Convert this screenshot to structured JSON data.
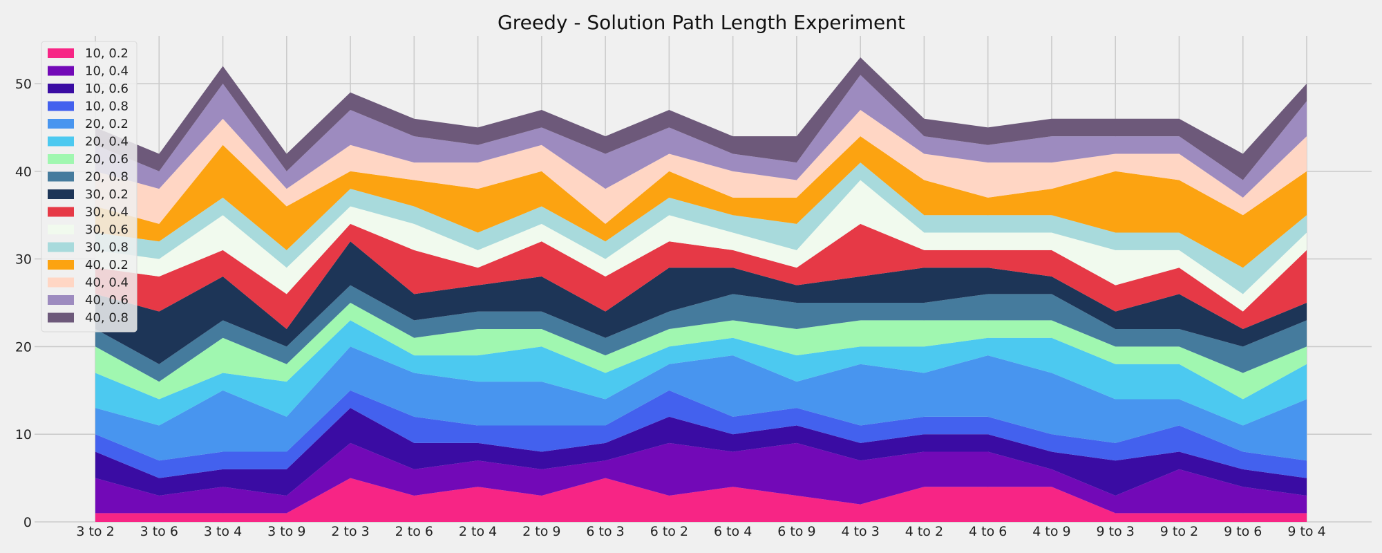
{
  "chart_data": {
    "type": "area",
    "stacked": true,
    "title": "Greedy - Solution Path Length Experiment",
    "xlabel": "",
    "ylabel": "",
    "ylim": [
      0,
      55
    ],
    "yticks": [
      0,
      10,
      20,
      30,
      40,
      50
    ],
    "grid": true,
    "legend_position": "top-left",
    "categories": [
      "3 to 2",
      "3 to 6",
      "3 to 4",
      "3 to 9",
      "2 to 3",
      "2 to 6",
      "2 to 4",
      "2 to 9",
      "6 to 3",
      "6 to 2",
      "6 to 4",
      "6 to 9",
      "4 to 3",
      "4 to 2",
      "4 to 6",
      "4 to 9",
      "9 to 3",
      "9 to 2",
      "9 to 6",
      "9 to 4"
    ],
    "series": [
      {
        "name": "10, 0.2",
        "color": "#f72585",
        "values": [
          1,
          1,
          1,
          1,
          5,
          3,
          4,
          3,
          5,
          3,
          4,
          3,
          2,
          4,
          4,
          4,
          1,
          1,
          1,
          1
        ]
      },
      {
        "name": "10, 0.4",
        "color": "#7209b7",
        "values": [
          4,
          2,
          3,
          2,
          4,
          3,
          3,
          3,
          2,
          6,
          4,
          6,
          5,
          4,
          4,
          2,
          2,
          5,
          3,
          2
        ]
      },
      {
        "name": "10, 0.6",
        "color": "#3a0ca3",
        "values": [
          3,
          2,
          2,
          3,
          4,
          3,
          2,
          2,
          2,
          3,
          2,
          2,
          2,
          2,
          2,
          2,
          4,
          2,
          2,
          2
        ]
      },
      {
        "name": "10, 0.8",
        "color": "#4361ee",
        "values": [
          2,
          2,
          2,
          2,
          2,
          3,
          2,
          3,
          2,
          3,
          2,
          2,
          2,
          2,
          2,
          2,
          2,
          3,
          2,
          2
        ]
      },
      {
        "name": "20, 0.2",
        "color": "#4895ef",
        "values": [
          3,
          4,
          7,
          4,
          5,
          5,
          5,
          5,
          3,
          3,
          7,
          3,
          7,
          5,
          7,
          7,
          5,
          3,
          3,
          7
        ]
      },
      {
        "name": "20, 0.4",
        "color": "#4cc9f0",
        "values": [
          4,
          3,
          2,
          4,
          3,
          2,
          3,
          4,
          3,
          2,
          2,
          3,
          2,
          3,
          2,
          4,
          4,
          4,
          3,
          4
        ]
      },
      {
        "name": "20, 0.6",
        "color": "#a0f7b0",
        "values": [
          3,
          2,
          4,
          2,
          2,
          2,
          3,
          2,
          2,
          2,
          2,
          3,
          3,
          3,
          2,
          2,
          2,
          2,
          3,
          2
        ]
      },
      {
        "name": "20, 0.8",
        "color": "#457b9d",
        "values": [
          2,
          2,
          2,
          2,
          2,
          2,
          2,
          2,
          2,
          2,
          3,
          3,
          2,
          2,
          3,
          3,
          2,
          2,
          3,
          3
        ]
      },
      {
        "name": "30, 0.2",
        "color": "#1d3557",
        "values": [
          4,
          6,
          5,
          2,
          5,
          3,
          3,
          4,
          3,
          5,
          3,
          2,
          3,
          4,
          3,
          2,
          2,
          4,
          2,
          2
        ]
      },
      {
        "name": "30, 0.4",
        "color": "#e63946",
        "values": [
          3,
          4,
          3,
          4,
          2,
          5,
          2,
          4,
          4,
          3,
          2,
          2,
          6,
          2,
          2,
          3,
          3,
          3,
          2,
          6
        ]
      },
      {
        "name": "30, 0.6",
        "color": "#f1faee",
        "values": [
          2,
          2,
          4,
          3,
          2,
          3,
          2,
          2,
          2,
          3,
          2,
          2,
          5,
          2,
          2,
          2,
          4,
          2,
          2,
          2
        ]
      },
      {
        "name": "30, 0.8",
        "color": "#a8dadc",
        "values": [
          2,
          2,
          2,
          2,
          2,
          2,
          2,
          2,
          2,
          2,
          2,
          3,
          2,
          2,
          2,
          2,
          2,
          2,
          3,
          2
        ]
      },
      {
        "name": "40, 0.2",
        "color": "#fca311",
        "values": [
          3,
          2,
          6,
          5,
          2,
          3,
          5,
          4,
          2,
          3,
          2,
          3,
          3,
          4,
          2,
          3,
          7,
          6,
          6,
          5
        ]
      },
      {
        "name": "40, 0.4",
        "color": "#ffd6c4",
        "values": [
          4,
          4,
          3,
          2,
          3,
          2,
          3,
          3,
          4,
          2,
          3,
          2,
          3,
          3,
          4,
          3,
          2,
          3,
          2,
          4
        ]
      },
      {
        "name": "40, 0.6",
        "color": "#9d8bbf",
        "values": [
          3,
          2,
          4,
          2,
          4,
          3,
          2,
          2,
          4,
          3,
          2,
          2,
          4,
          2,
          2,
          3,
          2,
          2,
          2,
          4
        ]
      },
      {
        "name": "40, 0.8",
        "color": "#6d597a",
        "values": [
          2,
          2,
          2,
          2,
          2,
          2,
          2,
          2,
          2,
          2,
          2,
          3,
          2,
          2,
          2,
          2,
          2,
          2,
          3,
          2
        ]
      }
    ]
  }
}
